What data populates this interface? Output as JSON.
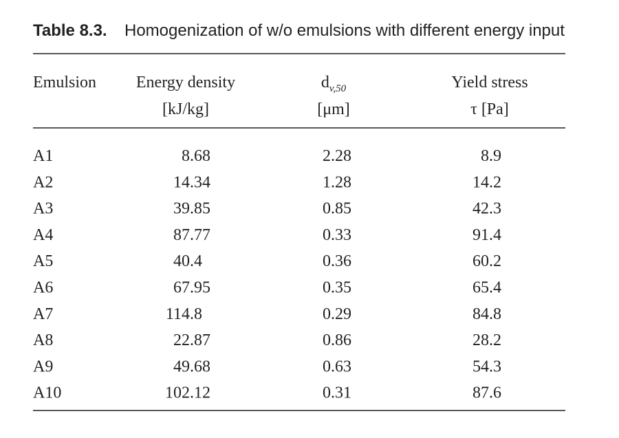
{
  "caption": {
    "label": "Table 8.3.",
    "text": "Homogenization of w/o emulsions with different energy input"
  },
  "table": {
    "header": [
      {
        "line1": "Emulsion"
      },
      {
        "line1": "Energy density",
        "line2": "[kJ/kg]"
      },
      {
        "symbol": "d",
        "subscript": "v,50",
        "line2": "[μm]"
      },
      {
        "line1": "Yield stress",
        "line2": "τ [Pa]"
      }
    ],
    "rows": [
      [
        "A1",
        "8.68",
        "2.28",
        "8.9"
      ],
      [
        "A2",
        "14.34",
        "1.28",
        "14.2"
      ],
      [
        "A3",
        "39.85",
        "0.85",
        "42.3"
      ],
      [
        "A4",
        "87.77",
        "0.33",
        "91.4"
      ],
      [
        "A5",
        "40.4",
        "0.36",
        "60.2"
      ],
      [
        "A6",
        "67.95",
        "0.35",
        "65.4"
      ],
      [
        "A7",
        "114.8",
        "0.29",
        "84.8"
      ],
      [
        "A8",
        "22.87",
        "0.86",
        "28.2"
      ],
      [
        "A9",
        "49.68",
        "0.63",
        "54.3"
      ],
      [
        "A10",
        "102.12",
        "0.31",
        "87.6"
      ]
    ]
  }
}
